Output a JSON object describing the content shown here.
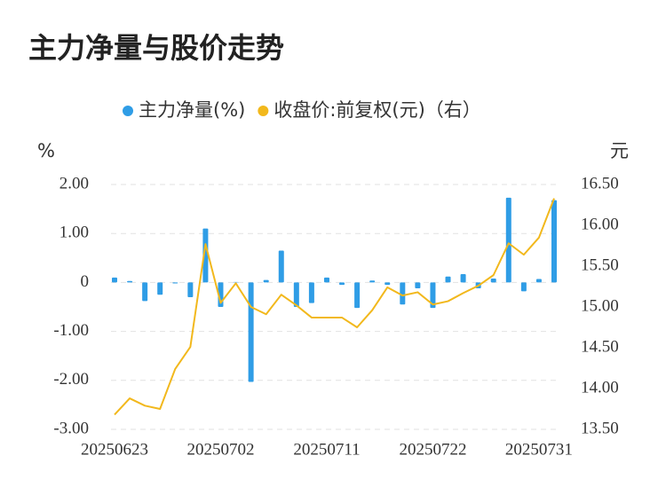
{
  "chart_data": {
    "type": "bar",
    "title": "主力净量与股价走势",
    "y_label": "%",
    "y2_label": "元",
    "categories": [
      "20250623",
      null,
      null,
      null,
      null,
      null,
      null,
      "20250702",
      null,
      null,
      null,
      null,
      null,
      null,
      "20250711",
      null,
      null,
      null,
      null,
      null,
      null,
      "20250722",
      null,
      null,
      null,
      null,
      null,
      null,
      "20250731",
      null
    ],
    "series": [
      {
        "name": "主力净量(%)",
        "type": "bar",
        "color": "#2f9de6",
        "values": [
          0.1,
          0.03,
          -0.38,
          -0.25,
          -0.02,
          -0.3,
          1.1,
          -0.5,
          0.01,
          -2.03,
          0.05,
          0.65,
          -0.5,
          -0.42,
          0.1,
          -0.05,
          -0.52,
          0.04,
          -0.05,
          -0.45,
          -0.12,
          -0.52,
          0.12,
          0.17,
          -0.12,
          0.08,
          1.73,
          -0.18,
          0.07,
          1.68
        ]
      },
      {
        "name": "收盘价:前复权(元)（右）",
        "type": "line",
        "axis": "y2",
        "color": "#f2b81c",
        "values": [
          13.68,
          13.88,
          13.79,
          13.75,
          14.24,
          14.51,
          15.77,
          15.05,
          15.29,
          15.0,
          14.91,
          15.15,
          15.02,
          14.87,
          14.87,
          14.87,
          14.75,
          14.96,
          15.24,
          15.14,
          15.18,
          15.03,
          15.07,
          15.17,
          15.26,
          15.39,
          15.78,
          15.64,
          15.85,
          16.33
        ]
      }
    ],
    "ylim": [
      -3,
      2
    ],
    "yticks": [
      {
        "value": 2,
        "label": "2.00"
      },
      {
        "value": 1,
        "label": "1.00"
      },
      0,
      {
        "value": -1,
        "label": "-1.00"
      },
      {
        "value": -2,
        "label": "-2.00"
      },
      {
        "value": -3,
        "label": "-3.00"
      }
    ],
    "y2lim": [
      13.5,
      16.5
    ],
    "y2ticks": [
      {
        "value": 16.5,
        "label": "16.50"
      },
      {
        "value": 16,
        "label": "16.00"
      },
      {
        "value": 15.5,
        "label": "15.50"
      },
      {
        "value": 15,
        "label": "15.00"
      },
      {
        "value": 14.5,
        "label": "14.50"
      },
      {
        "value": 14,
        "label": "14.00"
      },
      {
        "value": 13.5,
        "label": "13.50"
      }
    ],
    "grid": true
  }
}
